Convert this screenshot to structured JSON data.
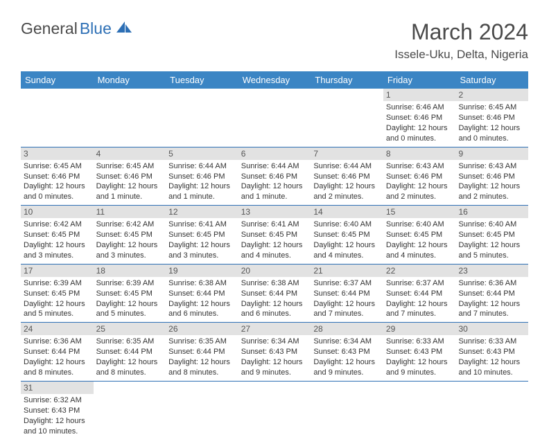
{
  "logo": {
    "text1": "General",
    "text2": "Blue"
  },
  "title": "March 2024",
  "location": "Issele-Uku, Delta, Nigeria",
  "colors": {
    "header_bg": "#3b85c4",
    "header_text": "#ffffff",
    "border": "#2d6fb5",
    "daynum_bg": "#e2e2e2",
    "body_text": "#333333"
  },
  "day_labels": [
    "Sunday",
    "Monday",
    "Tuesday",
    "Wednesday",
    "Thursday",
    "Friday",
    "Saturday"
  ],
  "weeks": [
    [
      null,
      null,
      null,
      null,
      null,
      {
        "n": "1",
        "sr": "Sunrise: 6:46 AM",
        "ss": "Sunset: 6:46 PM",
        "d1": "Daylight: 12 hours",
        "d2": "and 0 minutes."
      },
      {
        "n": "2",
        "sr": "Sunrise: 6:45 AM",
        "ss": "Sunset: 6:46 PM",
        "d1": "Daylight: 12 hours",
        "d2": "and 0 minutes."
      }
    ],
    [
      {
        "n": "3",
        "sr": "Sunrise: 6:45 AM",
        "ss": "Sunset: 6:46 PM",
        "d1": "Daylight: 12 hours",
        "d2": "and 0 minutes."
      },
      {
        "n": "4",
        "sr": "Sunrise: 6:45 AM",
        "ss": "Sunset: 6:46 PM",
        "d1": "Daylight: 12 hours",
        "d2": "and 1 minute."
      },
      {
        "n": "5",
        "sr": "Sunrise: 6:44 AM",
        "ss": "Sunset: 6:46 PM",
        "d1": "Daylight: 12 hours",
        "d2": "and 1 minute."
      },
      {
        "n": "6",
        "sr": "Sunrise: 6:44 AM",
        "ss": "Sunset: 6:46 PM",
        "d1": "Daylight: 12 hours",
        "d2": "and 1 minute."
      },
      {
        "n": "7",
        "sr": "Sunrise: 6:44 AM",
        "ss": "Sunset: 6:46 PM",
        "d1": "Daylight: 12 hours",
        "d2": "and 2 minutes."
      },
      {
        "n": "8",
        "sr": "Sunrise: 6:43 AM",
        "ss": "Sunset: 6:46 PM",
        "d1": "Daylight: 12 hours",
        "d2": "and 2 minutes."
      },
      {
        "n": "9",
        "sr": "Sunrise: 6:43 AM",
        "ss": "Sunset: 6:46 PM",
        "d1": "Daylight: 12 hours",
        "d2": "and 2 minutes."
      }
    ],
    [
      {
        "n": "10",
        "sr": "Sunrise: 6:42 AM",
        "ss": "Sunset: 6:45 PM",
        "d1": "Daylight: 12 hours",
        "d2": "and 3 minutes."
      },
      {
        "n": "11",
        "sr": "Sunrise: 6:42 AM",
        "ss": "Sunset: 6:45 PM",
        "d1": "Daylight: 12 hours",
        "d2": "and 3 minutes."
      },
      {
        "n": "12",
        "sr": "Sunrise: 6:41 AM",
        "ss": "Sunset: 6:45 PM",
        "d1": "Daylight: 12 hours",
        "d2": "and 3 minutes."
      },
      {
        "n": "13",
        "sr": "Sunrise: 6:41 AM",
        "ss": "Sunset: 6:45 PM",
        "d1": "Daylight: 12 hours",
        "d2": "and 4 minutes."
      },
      {
        "n": "14",
        "sr": "Sunrise: 6:40 AM",
        "ss": "Sunset: 6:45 PM",
        "d1": "Daylight: 12 hours",
        "d2": "and 4 minutes."
      },
      {
        "n": "15",
        "sr": "Sunrise: 6:40 AM",
        "ss": "Sunset: 6:45 PM",
        "d1": "Daylight: 12 hours",
        "d2": "and 4 minutes."
      },
      {
        "n": "16",
        "sr": "Sunrise: 6:40 AM",
        "ss": "Sunset: 6:45 PM",
        "d1": "Daylight: 12 hours",
        "d2": "and 5 minutes."
      }
    ],
    [
      {
        "n": "17",
        "sr": "Sunrise: 6:39 AM",
        "ss": "Sunset: 6:45 PM",
        "d1": "Daylight: 12 hours",
        "d2": "and 5 minutes."
      },
      {
        "n": "18",
        "sr": "Sunrise: 6:39 AM",
        "ss": "Sunset: 6:45 PM",
        "d1": "Daylight: 12 hours",
        "d2": "and 5 minutes."
      },
      {
        "n": "19",
        "sr": "Sunrise: 6:38 AM",
        "ss": "Sunset: 6:44 PM",
        "d1": "Daylight: 12 hours",
        "d2": "and 6 minutes."
      },
      {
        "n": "20",
        "sr": "Sunrise: 6:38 AM",
        "ss": "Sunset: 6:44 PM",
        "d1": "Daylight: 12 hours",
        "d2": "and 6 minutes."
      },
      {
        "n": "21",
        "sr": "Sunrise: 6:37 AM",
        "ss": "Sunset: 6:44 PM",
        "d1": "Daylight: 12 hours",
        "d2": "and 7 minutes."
      },
      {
        "n": "22",
        "sr": "Sunrise: 6:37 AM",
        "ss": "Sunset: 6:44 PM",
        "d1": "Daylight: 12 hours",
        "d2": "and 7 minutes."
      },
      {
        "n": "23",
        "sr": "Sunrise: 6:36 AM",
        "ss": "Sunset: 6:44 PM",
        "d1": "Daylight: 12 hours",
        "d2": "and 7 minutes."
      }
    ],
    [
      {
        "n": "24",
        "sr": "Sunrise: 6:36 AM",
        "ss": "Sunset: 6:44 PM",
        "d1": "Daylight: 12 hours",
        "d2": "and 8 minutes."
      },
      {
        "n": "25",
        "sr": "Sunrise: 6:35 AM",
        "ss": "Sunset: 6:44 PM",
        "d1": "Daylight: 12 hours",
        "d2": "and 8 minutes."
      },
      {
        "n": "26",
        "sr": "Sunrise: 6:35 AM",
        "ss": "Sunset: 6:44 PM",
        "d1": "Daylight: 12 hours",
        "d2": "and 8 minutes."
      },
      {
        "n": "27",
        "sr": "Sunrise: 6:34 AM",
        "ss": "Sunset: 6:43 PM",
        "d1": "Daylight: 12 hours",
        "d2": "and 9 minutes."
      },
      {
        "n": "28",
        "sr": "Sunrise: 6:34 AM",
        "ss": "Sunset: 6:43 PM",
        "d1": "Daylight: 12 hours",
        "d2": "and 9 minutes."
      },
      {
        "n": "29",
        "sr": "Sunrise: 6:33 AM",
        "ss": "Sunset: 6:43 PM",
        "d1": "Daylight: 12 hours",
        "d2": "and 9 minutes."
      },
      {
        "n": "30",
        "sr": "Sunrise: 6:33 AM",
        "ss": "Sunset: 6:43 PM",
        "d1": "Daylight: 12 hours",
        "d2": "and 10 minutes."
      }
    ],
    [
      {
        "n": "31",
        "sr": "Sunrise: 6:32 AM",
        "ss": "Sunset: 6:43 PM",
        "d1": "Daylight: 12 hours",
        "d2": "and 10 minutes."
      },
      null,
      null,
      null,
      null,
      null,
      null
    ]
  ]
}
